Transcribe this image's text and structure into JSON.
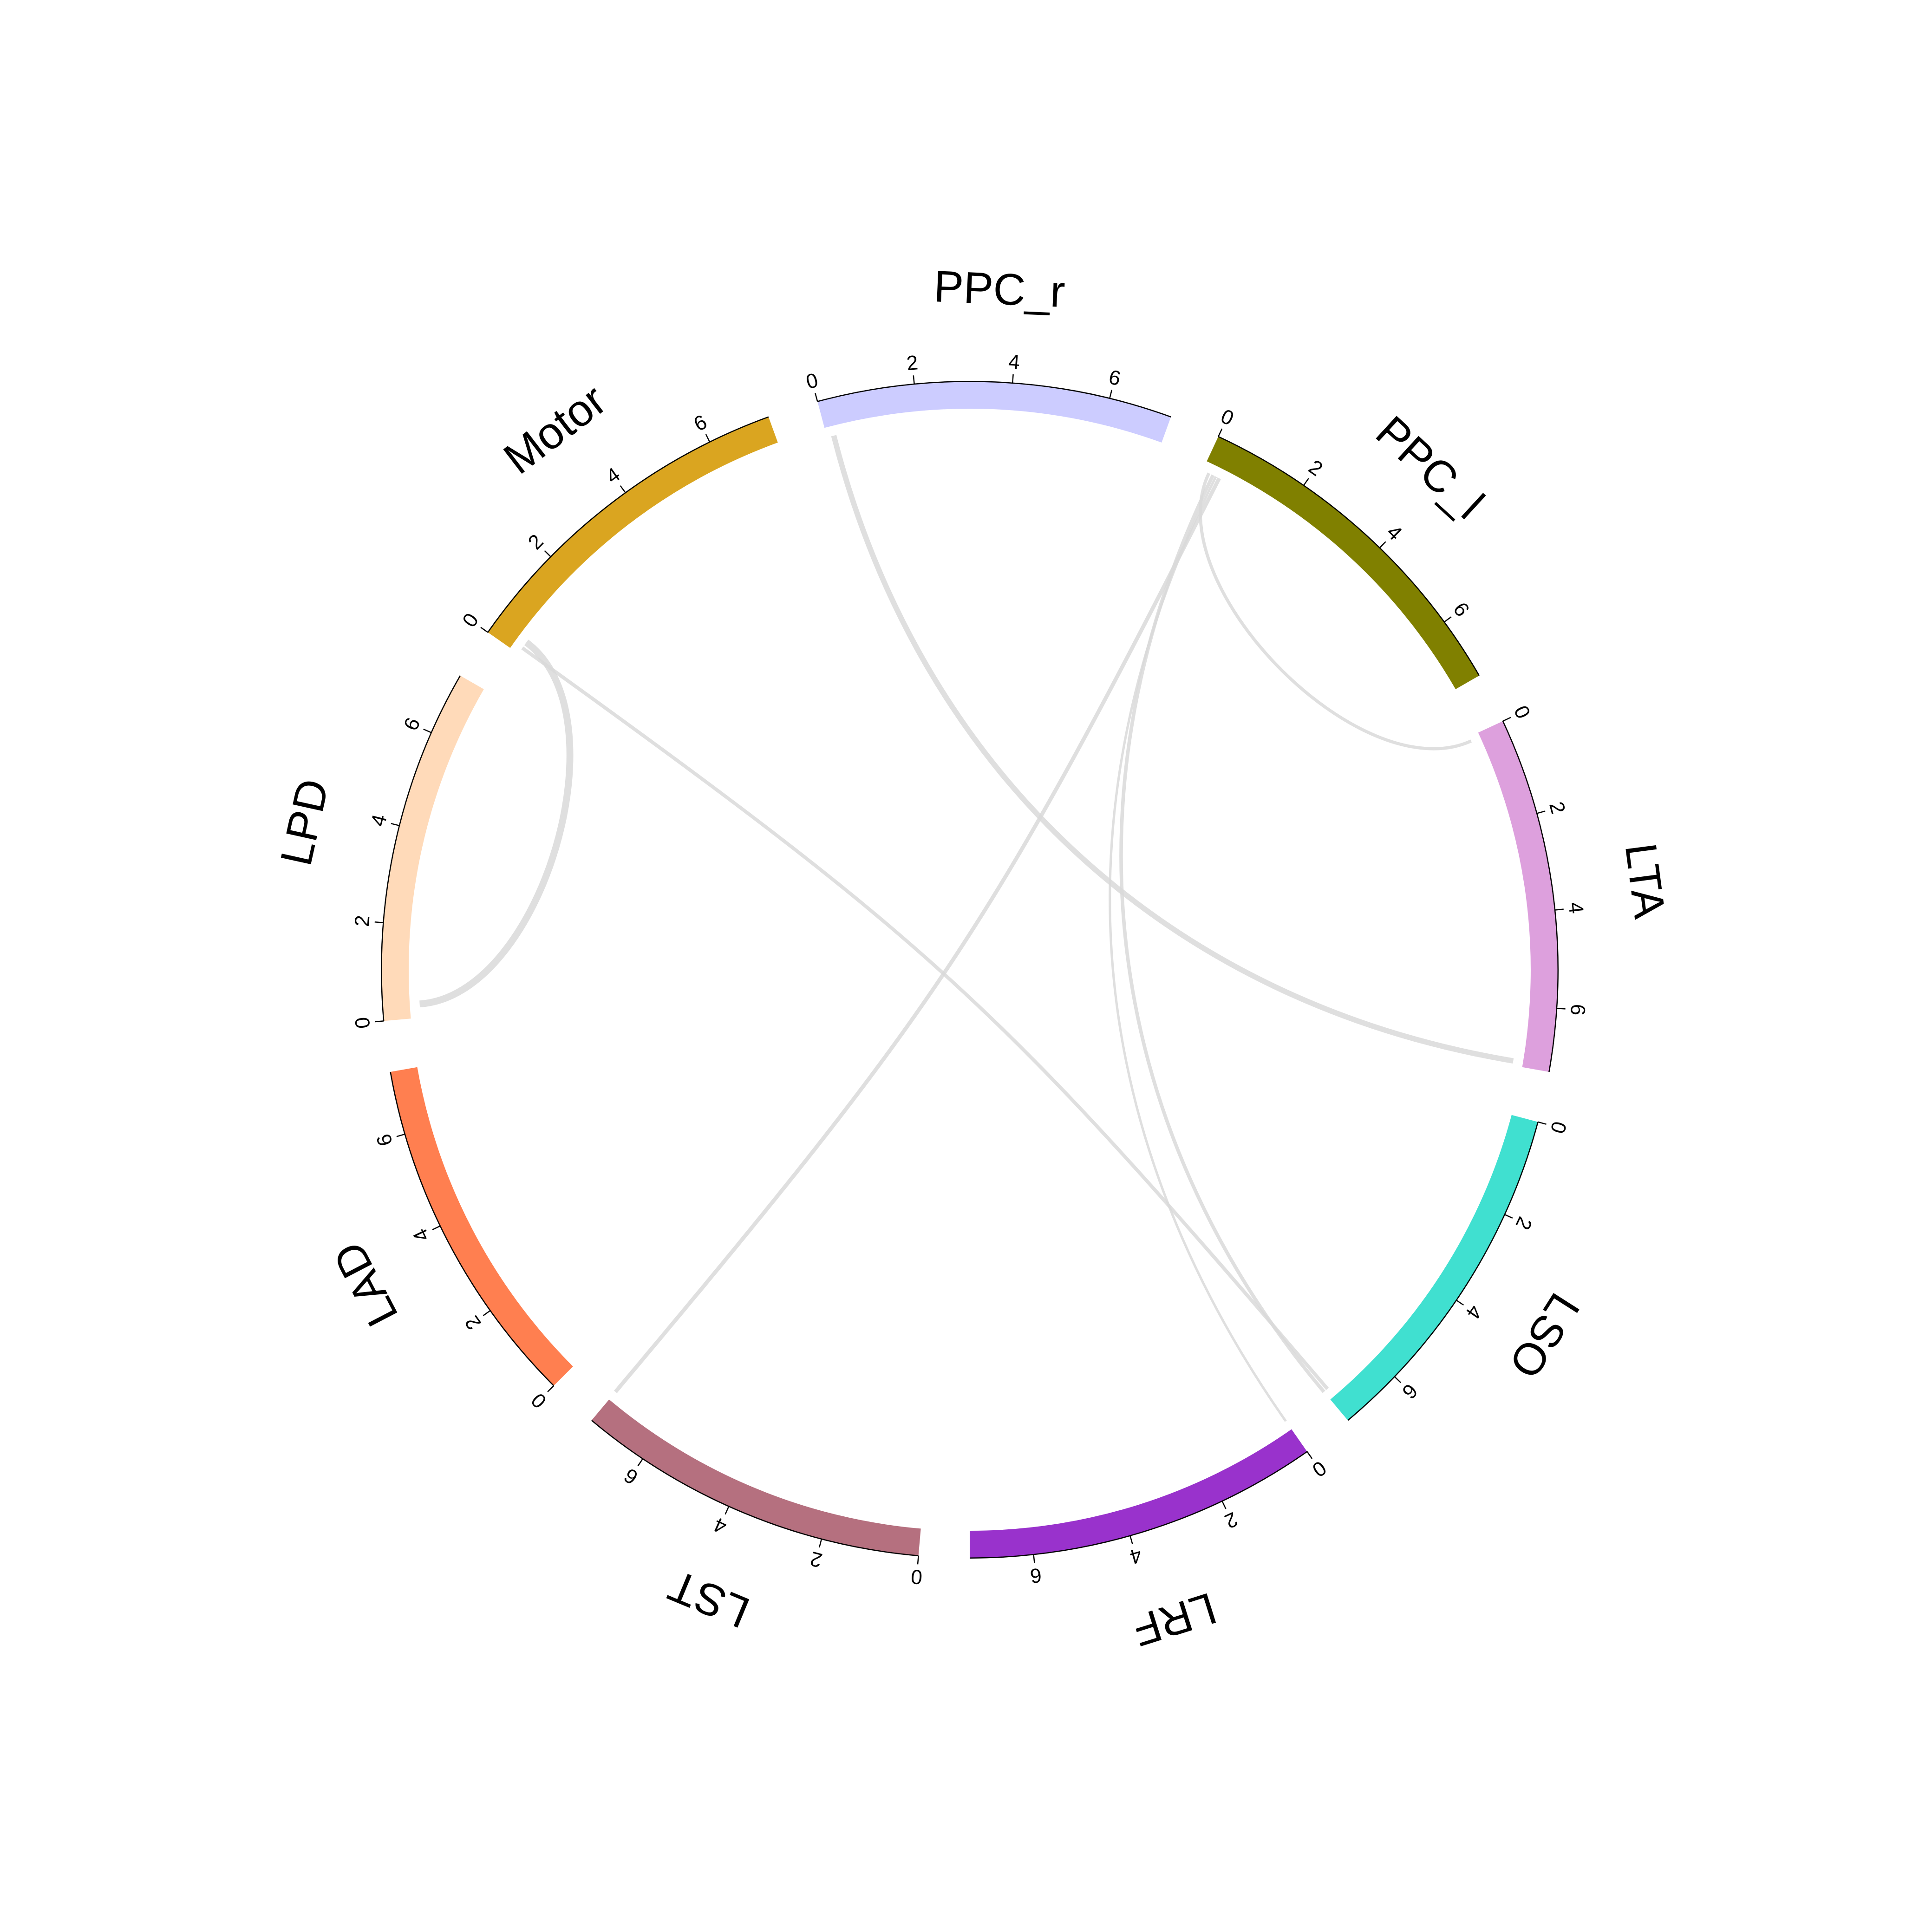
{
  "chart_data": {
    "type": "chord",
    "title": "",
    "axis_ticks": [
      "0",
      "2",
      "4",
      "6"
    ],
    "sectors": [
      {
        "name": "PPC_r",
        "color": "#CCCCFF",
        "xlim": [
          0,
          7.3
        ]
      },
      {
        "name": "PPC_l",
        "color": "#808000",
        "xlim": [
          0,
          7.3
        ]
      },
      {
        "name": "LTA",
        "color": "#DDA0DD",
        "xlim": [
          0,
          7.3
        ]
      },
      {
        "name": "LSO",
        "color": "#40E0D0",
        "xlim": [
          0,
          7.3
        ]
      },
      {
        "name": "LRF",
        "color": "#9932CC",
        "xlim": [
          0,
          7.3
        ]
      },
      {
        "name": "LST",
        "color": "#B5707F",
        "xlim": [
          0,
          7.3
        ]
      },
      {
        "name": "LAD",
        "color": "#FF7F50",
        "xlim": [
          0,
          7.3
        ]
      },
      {
        "name": "LPD",
        "color": "#FFDAB9",
        "xlim": [
          0,
          7.3
        ]
      },
      {
        "name": "Motor",
        "color": "#DAA520",
        "xlim": [
          0,
          7.3
        ]
      }
    ],
    "links": [
      {
        "from": "PPC_r",
        "from_pos": 0.15,
        "to": "LTA",
        "to_pos": 7.2,
        "weight": 0.6
      },
      {
        "from": "PPC_l",
        "from_pos": 0.15,
        "to": "LTA",
        "to_pos": 0.1,
        "weight": 0.3
      },
      {
        "from": "PPC_l",
        "from_pos": 0.25,
        "to": "LSO",
        "to_pos": 7.3,
        "weight": 0.35
      },
      {
        "from": "PPC_l",
        "from_pos": 0.32,
        "to": "LRF",
        "to_pos": 0.0,
        "weight": 0.2
      },
      {
        "from": "PPC_l",
        "from_pos": 0.4,
        "to": "LST",
        "to_pos": 7.3,
        "weight": 0.4
      },
      {
        "from": "Motor",
        "from_pos": 0.15,
        "to": "LSO",
        "to_pos": 7.2,
        "weight": 0.35
      },
      {
        "from": "Motor",
        "from_pos": 0.3,
        "to": "LPD",
        "to_pos": 0.3,
        "weight": 0.8
      }
    ]
  }
}
